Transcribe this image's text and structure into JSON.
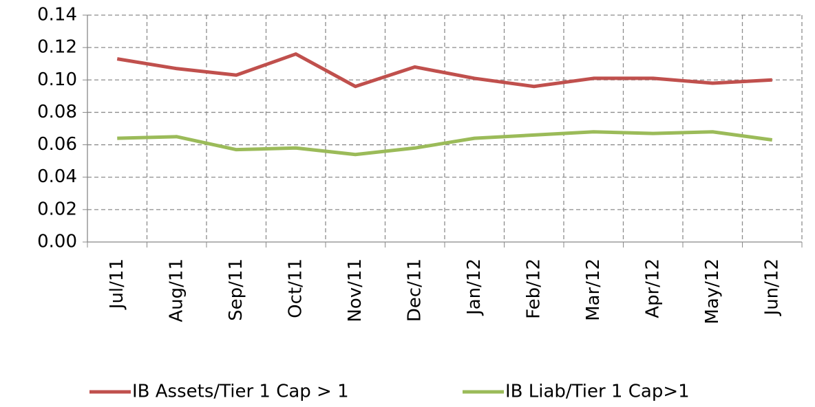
{
  "chart_data": {
    "type": "line",
    "categories": [
      "Jul/11",
      "Aug/11",
      "Sep/11",
      "Oct/11",
      "Nov/11",
      "Dec/11",
      "Jan/12",
      "Feb/12",
      "Mar/12",
      "Apr/12",
      "May/12",
      "Jun/12"
    ],
    "series": [
      {
        "name": "IB Assets/Tier 1 Cap > 1",
        "color": "#c0504d",
        "values": [
          0.113,
          0.107,
          0.103,
          0.116,
          0.096,
          0.108,
          0.101,
          0.096,
          0.101,
          0.101,
          0.098,
          0.1
        ]
      },
      {
        "name": "IB Liab/Tier 1 Cap>1",
        "color": "#9bbb59",
        "values": [
          0.064,
          0.065,
          0.057,
          0.058,
          0.054,
          0.058,
          0.064,
          0.066,
          0.068,
          0.067,
          0.068,
          0.063
        ]
      }
    ],
    "ylim": [
      0,
      0.14
    ],
    "yticks": [
      {
        "value": 0,
        "label": "0.00"
      },
      {
        "value": 0.02,
        "label": "0.02"
      },
      {
        "value": 0.04,
        "label": "0.04"
      },
      {
        "value": 0.06,
        "label": "0.06"
      },
      {
        "value": 0.08,
        "label": "0.08"
      },
      {
        "value": 0.1,
        "label": "0.10"
      },
      {
        "value": 0.12,
        "label": "0.12"
      },
      {
        "value": 0.14,
        "label": "0.14"
      }
    ],
    "grid": true,
    "legend": "bottom"
  }
}
